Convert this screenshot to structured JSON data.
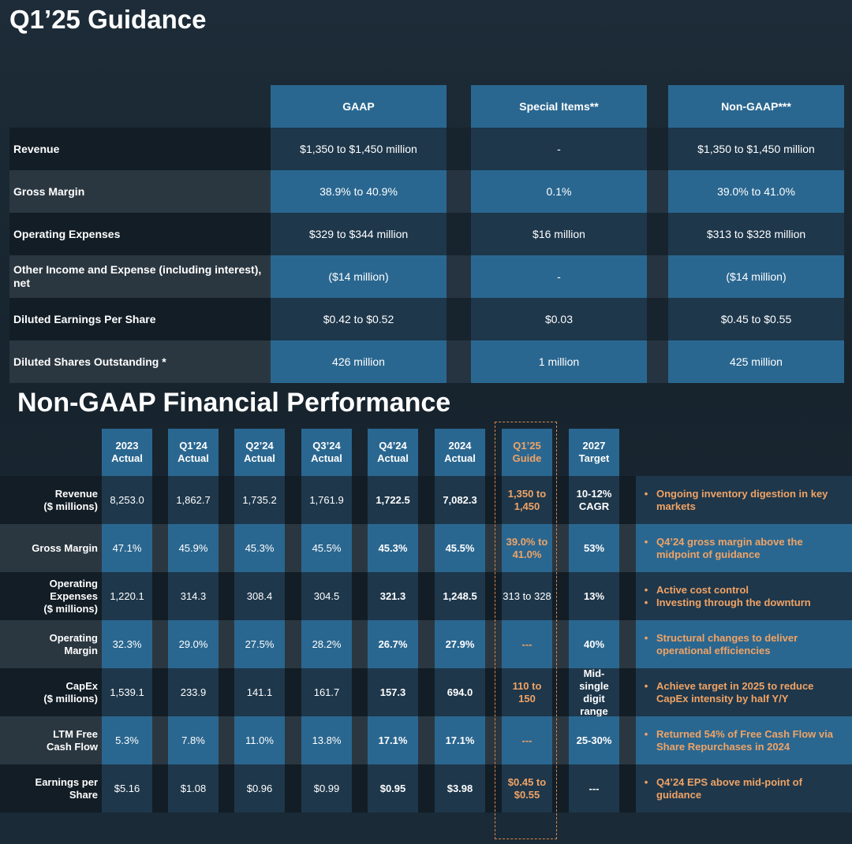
{
  "guidance": {
    "title": "Q1’25 Guidance",
    "columns": [
      "GAAP",
      "Special Items**",
      "Non-GAAP***"
    ],
    "rows": [
      {
        "label": "Revenue",
        "values": [
          "$1,350 to $1,450 million",
          "-",
          "$1,350 to $1,450 million"
        ]
      },
      {
        "label": "Gross Margin",
        "values": [
          "38.9% to 40.9%",
          "0.1%",
          "39.0% to 41.0%"
        ]
      },
      {
        "label": "Operating Expenses",
        "values": [
          "$329 to $344 million",
          "$16 million",
          "$313 to $328 million"
        ]
      },
      {
        "label": "Other Income and Expense (including interest), net",
        "values": [
          "($14 million)",
          "-",
          "($14 million)"
        ]
      },
      {
        "label": "Diluted Earnings Per Share",
        "values": [
          "$0.42 to $0.52",
          "$0.03",
          "$0.45 to $0.55"
        ]
      },
      {
        "label": "Diluted Shares Outstanding *",
        "values": [
          "426 million",
          "1 million",
          "425 million"
        ]
      }
    ]
  },
  "performance": {
    "title": "Non-GAAP Financial Performance",
    "columns": [
      "2023\nActual",
      "Q1’24\nActual",
      "Q2’24\nActual",
      "Q3’24\nActual",
      "Q4’24\nActual",
      "2024\nActual",
      "Q1’25\nGuide",
      "2027\nTarget"
    ],
    "rows": [
      {
        "label": "Revenue\n($ millions)",
        "values": [
          "8,253.0",
          "1,862.7",
          "1,735.2",
          "1,761.9",
          "1,722.5",
          "7,082.3",
          "1,350 to\n1,450",
          "10-12%\nCAGR"
        ],
        "notes": [
          "Ongoing inventory digestion in key markets"
        ]
      },
      {
        "label": "Gross Margin",
        "values": [
          "47.1%",
          "45.9%",
          "45.3%",
          "45.5%",
          "45.3%",
          "45.5%",
          "39.0% to\n41.0%",
          "53%"
        ],
        "notes": [
          "Q4’24 gross margin above the midpoint of guidance"
        ]
      },
      {
        "label": "Operating\nExpenses\n($ millions)",
        "values": [
          "1,220.1",
          "314.3",
          "308.4",
          "304.5",
          "321.3",
          "1,248.5",
          "313 to 328",
          "13%"
        ],
        "notes": [
          "Active cost control",
          "Investing through the downturn"
        ]
      },
      {
        "label": "Operating\nMargin",
        "values": [
          "32.3%",
          "29.0%",
          "27.5%",
          "28.2%",
          "26.7%",
          "27.9%",
          "---",
          "40%"
        ],
        "notes": [
          "Structural changes to deliver operational efficiencies"
        ]
      },
      {
        "label": "CapEx\n($ millions)",
        "values": [
          "1,539.1",
          "233.9",
          "141.1",
          "161.7",
          "157.3",
          "694.0",
          "110 to\n150",
          "Mid-\nsingle\ndigit\nrange"
        ],
        "notes": [
          "Achieve target in 2025 to reduce CapEx intensity by half Y/Y"
        ]
      },
      {
        "label": "LTM Free\nCash Flow",
        "values": [
          "5.3%",
          "7.8%",
          "11.0%",
          "13.8%",
          "17.1%",
          "17.1%",
          "---",
          "25-30%"
        ],
        "notes": [
          "Returned 54% of Free Cash Flow via Share Repurchases in 2024"
        ]
      },
      {
        "label": "Earnings per\nShare",
        "values": [
          "$5.16",
          "$1.08",
          "$0.96",
          "$0.99",
          "$0.95",
          "$3.98",
          "$0.45 to\n$0.55",
          "---"
        ],
        "notes": [
          "Q4’24 EPS above mid-point of guidance"
        ]
      }
    ]
  }
}
